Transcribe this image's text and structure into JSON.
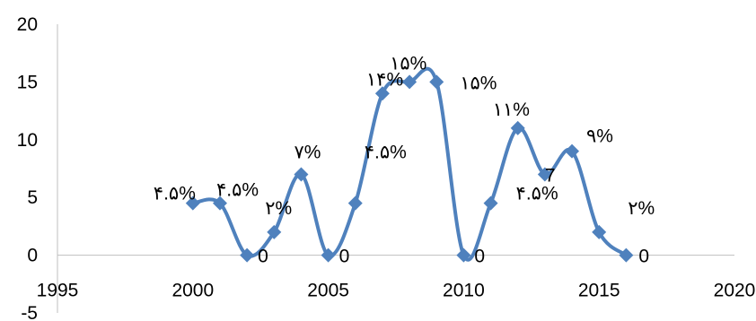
{
  "chart_data": {
    "type": "line",
    "title": "",
    "xlabel": "",
    "ylabel": "",
    "xlim": [
      1995,
      2020
    ],
    "ylim": [
      -5,
      20
    ],
    "x_ticks": [
      1995,
      2000,
      2005,
      2010,
      2015,
      2020
    ],
    "y_ticks": [
      -5,
      0,
      5,
      10,
      15,
      20
    ],
    "x_tick_labels": [
      "1995",
      "2000",
      "2005",
      "2010",
      "2015",
      "2020"
    ],
    "y_tick_labels": [
      "-5",
      "0",
      "5",
      "10",
      "15",
      "20"
    ],
    "grid": false,
    "legend": "none",
    "marker": "diamond",
    "smooth": true,
    "series": [
      {
        "color": "#4f81bd",
        "points": [
          {
            "x": 2000,
            "y": 4.5
          },
          {
            "x": 2001,
            "y": 4.5
          },
          {
            "x": 2002,
            "y": 0
          },
          {
            "x": 2003,
            "y": 2
          },
          {
            "x": 2004,
            "y": 7
          },
          {
            "x": 2005,
            "y": 0
          },
          {
            "x": 2006,
            "y": 4.5
          },
          {
            "x": 2007,
            "y": 14
          },
          {
            "x": 2008,
            "y": 15
          },
          {
            "x": 2009,
            "y": 15
          },
          {
            "x": 2010,
            "y": 0
          },
          {
            "x": 2011,
            "y": 4.5
          },
          {
            "x": 2012,
            "y": 11
          },
          {
            "x": 2013,
            "y": 7
          },
          {
            "x": 2014,
            "y": 9
          },
          {
            "x": 2015,
            "y": 2
          },
          {
            "x": 2016,
            "y": 0
          }
        ]
      }
    ],
    "data_labels": [
      {
        "text": "۴.۵%",
        "x": 2000,
        "y": 4.5
      },
      {
        "text": "۴.۵%",
        "x": 2001,
        "y": 4.5
      },
      {
        "text": "0",
        "x": 2002,
        "y": 0
      },
      {
        "text": "۲%",
        "x": 2003,
        "y": 2
      },
      {
        "text": "۷%",
        "x": 2004,
        "y": 7
      },
      {
        "text": "0",
        "x": 2005,
        "y": 0
      },
      {
        "text": "۴.۵%",
        "x": 2006,
        "y": 4.5
      },
      {
        "text": "۱۴%",
        "x": 2007,
        "y": 14
      },
      {
        "text": "۱۵%",
        "x": 2008,
        "y": 15
      },
      {
        "text": "۱۵%",
        "x": 2009,
        "y": 15
      },
      {
        "text": "0",
        "x": 2010,
        "y": 0
      },
      {
        "text": "۴.۵%",
        "x": 2011,
        "y": 4.5
      },
      {
        "text": "۱۱%",
        "x": 2012,
        "y": 11
      },
      {
        "text": "7",
        "x": 2013,
        "y": 7
      },
      {
        "text": "۹%",
        "x": 2014,
        "y": 9
      },
      {
        "text": "۲%",
        "x": 2015,
        "y": 2
      },
      {
        "text": "0",
        "x": 2016,
        "y": 0
      }
    ]
  }
}
